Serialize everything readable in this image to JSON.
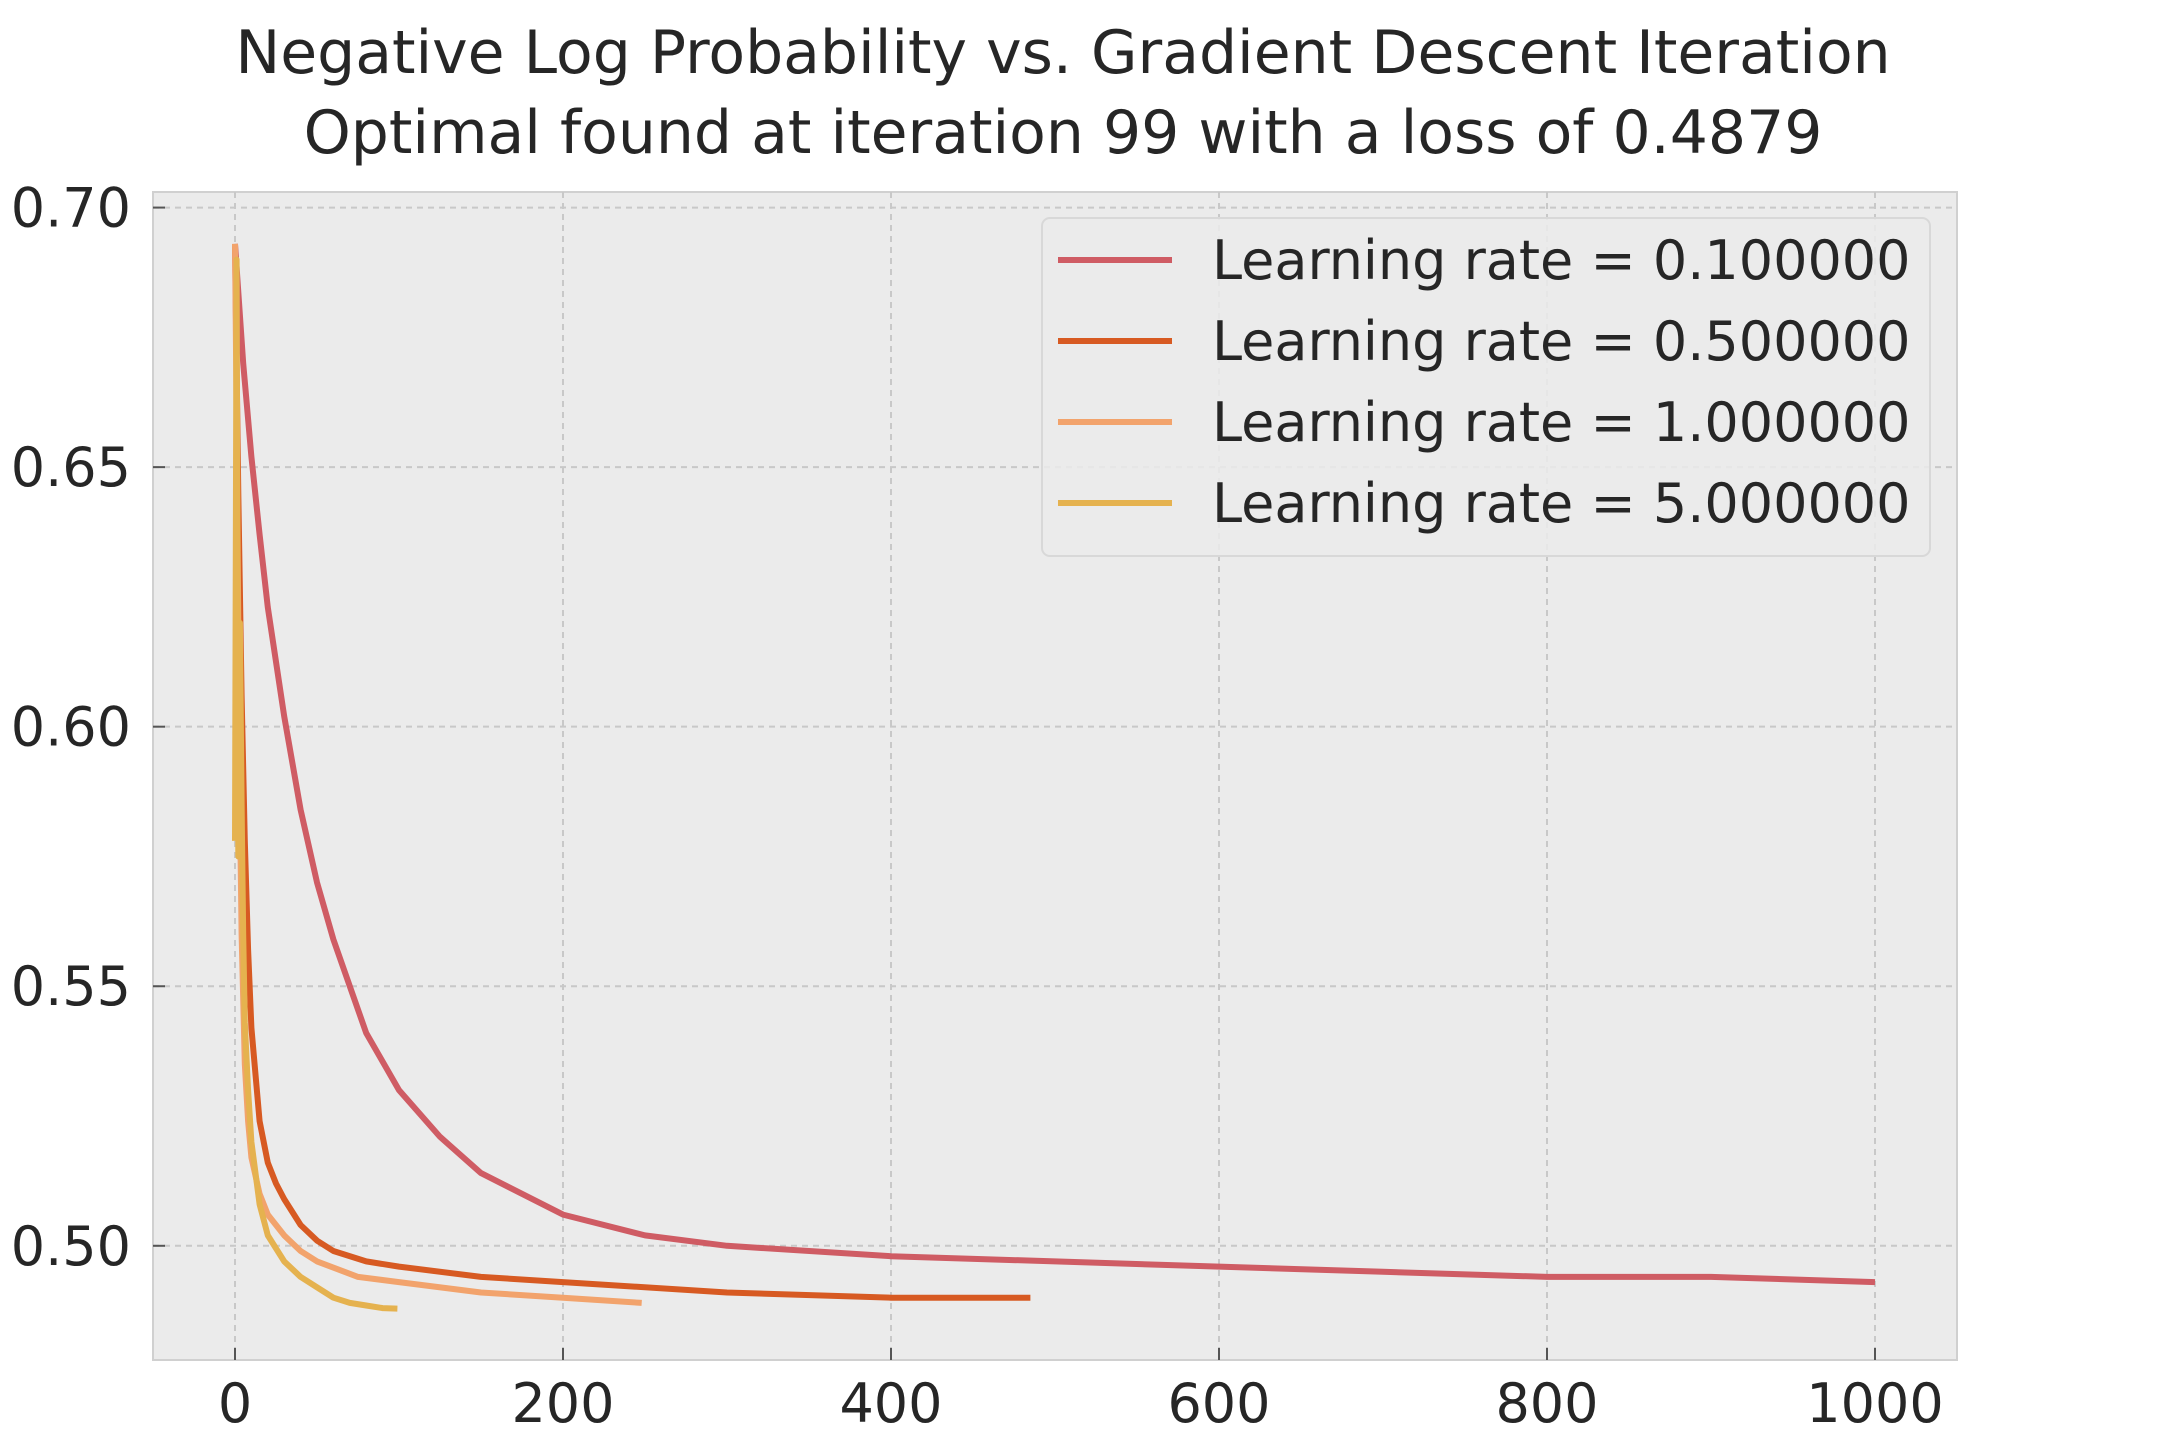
{
  "chart_data": {
    "type": "line",
    "title": "Negative Log Probability vs. Gradient Descent Iteration",
    "subtitle": "Optimal found at iteration 99 with a loss of 0.4879",
    "xlabel": "",
    "ylabel": "",
    "xlim": [
      -50,
      1050
    ],
    "ylim": [
      0.478,
      0.703
    ],
    "x_ticks": [
      "0",
      "200",
      "400",
      "600",
      "800",
      "1000"
    ],
    "y_ticks": [
      "0.50",
      "0.55",
      "0.60",
      "0.65",
      "0.70"
    ],
    "grid": true,
    "legend_position": "top-right",
    "background": "#ebebeb",
    "series": [
      {
        "name": "Learning rate = 0.100000",
        "color": "#cf5c64",
        "x": [
          0,
          5,
          10,
          15,
          20,
          30,
          40,
          50,
          60,
          80,
          100,
          125,
          150,
          200,
          250,
          300,
          400,
          500,
          600,
          700,
          800,
          900,
          1000
        ],
        "y": [
          0.693,
          0.67,
          0.652,
          0.637,
          0.623,
          0.602,
          0.584,
          0.57,
          0.559,
          0.541,
          0.53,
          0.521,
          0.514,
          0.506,
          0.502,
          0.5,
          0.498,
          0.497,
          0.496,
          0.495,
          0.494,
          0.494,
          0.493
        ]
      },
      {
        "name": "Learning rate = 0.500000",
        "color": "#d75a22",
        "x": [
          0,
          2,
          4,
          6,
          8,
          10,
          15,
          20,
          25,
          30,
          40,
          50,
          60,
          80,
          100,
          150,
          200,
          300,
          400,
          485
        ],
        "y": [
          0.693,
          0.645,
          0.606,
          0.578,
          0.557,
          0.542,
          0.524,
          0.516,
          0.512,
          0.509,
          0.504,
          0.501,
          0.499,
          0.497,
          0.496,
          0.494,
          0.493,
          0.491,
          0.49,
          0.49
        ]
      },
      {
        "name": "Learning rate = 1.000000",
        "color": "#f2a36c",
        "x": [
          0,
          1,
          2,
          3,
          4,
          6,
          8,
          10,
          15,
          20,
          30,
          40,
          50,
          75,
          100,
          150,
          200,
          248
        ],
        "y": [
          0.693,
          0.66,
          0.62,
          0.585,
          0.56,
          0.535,
          0.524,
          0.517,
          0.51,
          0.506,
          0.502,
          0.499,
          0.497,
          0.494,
          0.493,
          0.491,
          0.49,
          0.489
        ]
      },
      {
        "name": "Learning rate = 5.000000",
        "color": "#e5b24f",
        "x": [
          0,
          1,
          2,
          3,
          4,
          5,
          6,
          8,
          10,
          15,
          20,
          30,
          40,
          50,
          60,
          70,
          80,
          90,
          99
        ],
        "y": [
          0.578,
          0.69,
          0.575,
          0.62,
          0.585,
          0.56,
          0.543,
          0.53,
          0.52,
          0.508,
          0.502,
          0.497,
          0.494,
          0.492,
          0.49,
          0.489,
          0.4885,
          0.488,
          0.4879
        ]
      }
    ]
  }
}
